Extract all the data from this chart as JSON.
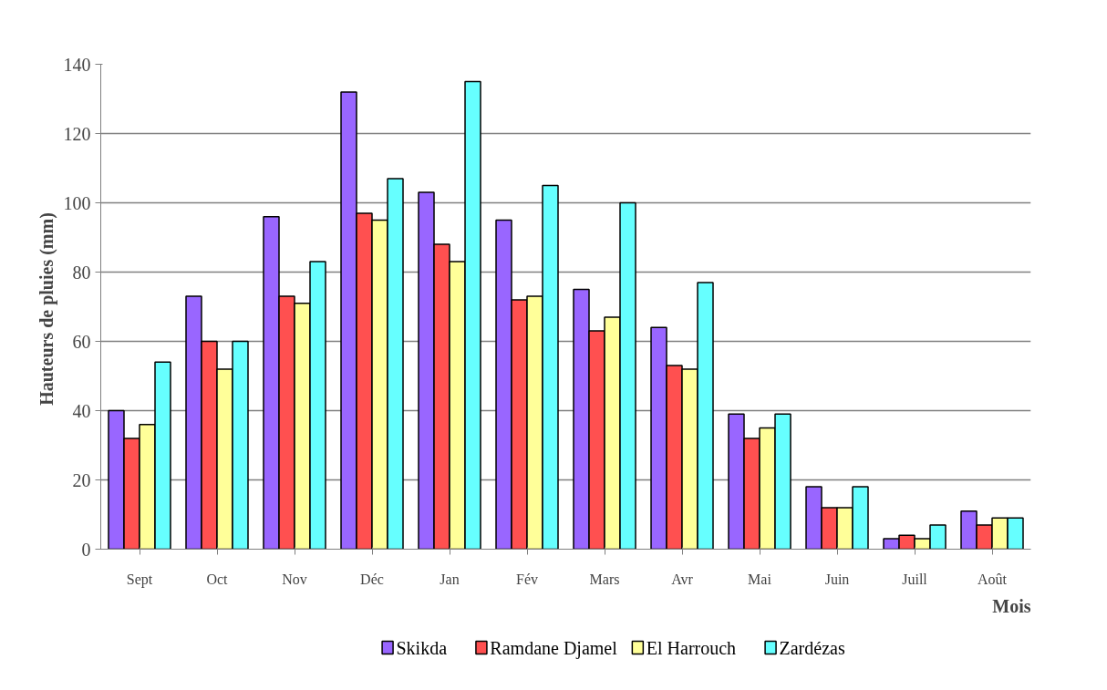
{
  "chart_data": {
    "type": "bar",
    "xlabel": "Mois",
    "ylabel": "Hauteurs de pluies  (mm)",
    "categories": [
      "Sept",
      "Oct",
      "Nov",
      "Déc",
      "Jan",
      "Fév",
      "Mars",
      "Avr",
      "Mai",
      "Juin",
      "Juill",
      "Août"
    ],
    "series": [
      {
        "name": "Skikda",
        "color": "#9966ff",
        "values": [
          40,
          73,
          96,
          132,
          103,
          95,
          75,
          64,
          39,
          18,
          3,
          11
        ]
      },
      {
        "name": "Ramdane Djamel",
        "color": "#ff5050",
        "values": [
          32,
          60,
          73,
          97,
          88,
          72,
          63,
          53,
          32,
          12,
          4,
          7
        ]
      },
      {
        "name": "El Harrouch",
        "color": "#ffff99",
        "values": [
          36,
          52,
          71,
          95,
          83,
          73,
          67,
          52,
          35,
          12,
          3,
          9
        ]
      },
      {
        "name": "Zardézas",
        "color": "#66ffff",
        "values": [
          54,
          60,
          83,
          107,
          135,
          105,
          100,
          77,
          39,
          18,
          7,
          9
        ]
      }
    ],
    "ylim": [
      0,
      140
    ],
    "yticks": [
      0,
      20,
      40,
      60,
      80,
      100,
      120,
      140
    ],
    "grid": "y",
    "legend": "bottom"
  }
}
